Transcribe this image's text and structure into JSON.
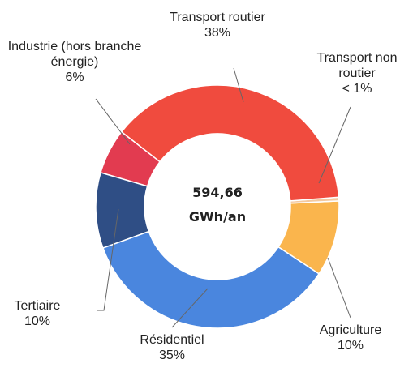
{
  "chart_data": {
    "type": "donut",
    "categories": [
      "Transport routier",
      "Transport non routier",
      "Agriculture",
      "Résidentiel",
      "Tertiaire",
      "Industrie (hors branche énergie)"
    ],
    "values": [
      38,
      0.5,
      10,
      35,
      10,
      6
    ],
    "value_labels": [
      "38%",
      "< 1%",
      "10%",
      "35%",
      "10%",
      "6%"
    ],
    "colors": [
      "#f04b3e",
      "#f3c9a0",
      "#fab54d",
      "#4a86de",
      "#2f4e85",
      "#e23b50"
    ],
    "annotations": [
      "594,66",
      "GWh/an"
    ]
  }
}
